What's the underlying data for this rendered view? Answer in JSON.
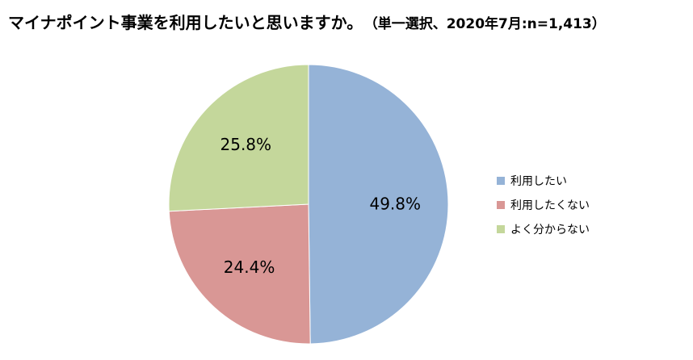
{
  "title": "マイナポイント事業を利用したいと思いますか。",
  "subtitle": "（単一選択、2020年7月:n=1,413）",
  "chart_data": {
    "type": "pie",
    "title": "マイナポイント事業を利用したいと思いますか。",
    "subtitle": "（単一選択、2020年7月:n=1,413）",
    "labels": [
      "利用したい",
      "利用したくない",
      "よく分からない"
    ],
    "values": [
      49.8,
      24.4,
      25.8
    ],
    "data_labels": [
      "49.8%",
      "24.4%",
      "25.8%"
    ],
    "colors": [
      "#95b3d7",
      "#d99795",
      "#c4d79b"
    ],
    "legend_position": "right"
  },
  "legend": {
    "items": [
      {
        "label": "利用したい",
        "color": "#95b3d7"
      },
      {
        "label": "利用したくない",
        "color": "#d99795"
      },
      {
        "label": "よく分からない",
        "color": "#c4d79b"
      }
    ]
  }
}
